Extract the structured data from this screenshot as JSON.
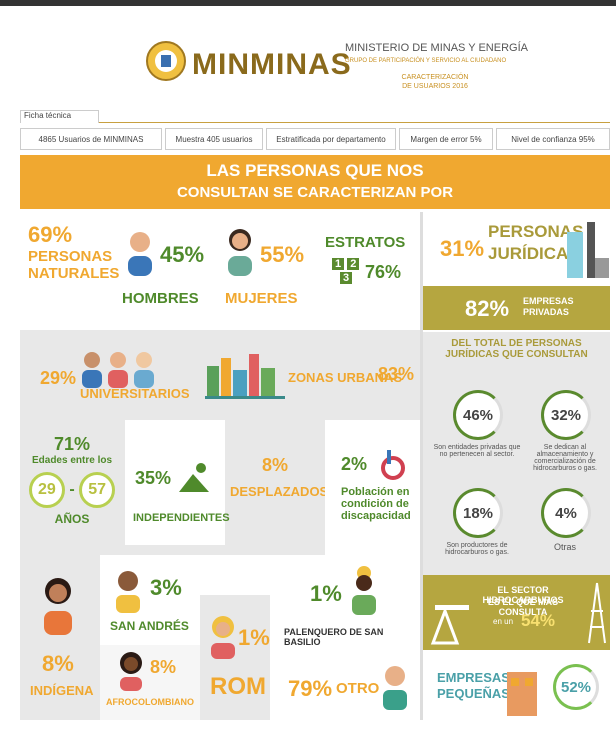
{
  "header": {
    "brand": "MINMINAS",
    "ministry": "MINISTERIO DE MINAS Y ENERGÍA",
    "group": "GRUPO DE PARTICIPACIÓN Y SERVICIO AL CIUDADANO",
    "report": [
      "CARACTERIZACIÓN",
      "DE USUARIOS 2016"
    ]
  },
  "ficha": {
    "title": "Ficha técnica",
    "items": [
      "4865 Usuarios de MINMINAS",
      "Muestra 405 usuarios",
      "Estratificada por departamento",
      "Margen de error 5%",
      "Nivel de confianza 95%"
    ]
  },
  "banner": [
    "LAS PERSONAS QUE NOS",
    "CONSULTAN SE CARACTERIZAN POR"
  ],
  "naturales": {
    "value": "69%",
    "label": [
      "PERSONAS",
      "NATURALES"
    ]
  },
  "hombres": {
    "value": "45%",
    "label": "HOMBRES"
  },
  "mujeres": {
    "value": "55%",
    "label": "MUJERES"
  },
  "estratos": {
    "label": "ESTRATOS",
    "levels": [
      "1",
      "2",
      "3"
    ],
    "value": "76%"
  },
  "juridicas": {
    "value": "31%",
    "label": [
      "PERSONAS",
      "JURÍDICAS"
    ]
  },
  "privadas": {
    "value": "82%",
    "label": [
      "EMPRESAS",
      "PRIVADAS"
    ]
  },
  "universitarios": {
    "value": "29%",
    "label": "UNIVERSITARIOS"
  },
  "urbanas": {
    "label": "ZONAS URBANAS",
    "value": "83%"
  },
  "edades": {
    "value": "71%",
    "label": "Edades entre los",
    "from": "29",
    "sep": "-",
    "to": "57",
    "unit": "AÑOS"
  },
  "independientes": {
    "value": "35%",
    "label": "INDEPENDIENTES"
  },
  "desplazados": {
    "value": "8%",
    "label": "DESPLAZADOS"
  },
  "discapacidad": {
    "value": "2%",
    "label": [
      "Población en",
      "condición de",
      "discapacidad"
    ]
  },
  "total_juridicas": {
    "title": [
      "DEL TOTAL DE PERSONAS",
      "JURÍDICAS QUE CONSULTAN"
    ],
    "items": [
      {
        "value": "46%",
        "caption": "Son entidades privadas que no pertenecen al sector."
      },
      {
        "value": "32%",
        "caption": "Se dedican al almacenamiento y comercialización de hidrocarburos o gas."
      },
      {
        "value": "18%",
        "caption": "Son productores de hidrocarburos o gas."
      },
      {
        "value": "4%",
        "caption": "Otras"
      }
    ]
  },
  "indigena": {
    "value": "8%",
    "label": "INDÍGENA"
  },
  "san_andres": {
    "value": "3%",
    "label": "SAN ANDRÉS"
  },
  "afro": {
    "value": "8%",
    "label": "AFROCOLOMBIANO"
  },
  "rom": {
    "label": "ROM",
    "value": "1%"
  },
  "palenquero": {
    "value": "1%",
    "label": "PALENQUERO DE SAN BASILIO"
  },
  "otro": {
    "value": "79%",
    "label": "OTRO"
  },
  "hidrocarburos": {
    "lines": [
      "EL SECTOR HIDROCARBUROS",
      "ES EL QUE MÁS CONSULTA"
    ],
    "prefix": "en un",
    "value": "54%"
  },
  "pequenas": {
    "label": [
      "EMPRESAS",
      "PEQUEÑAS"
    ],
    "value": "52%"
  }
}
